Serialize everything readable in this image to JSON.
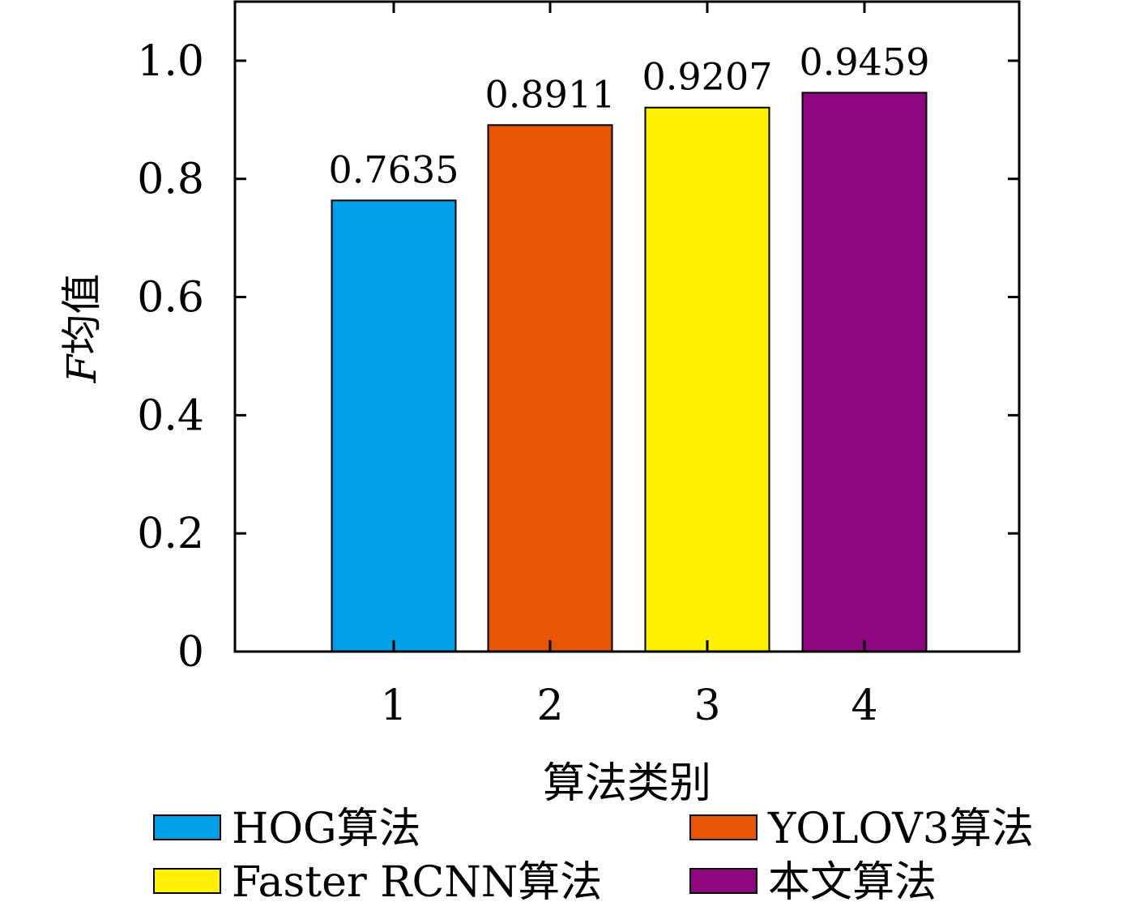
{
  "chart_data": {
    "type": "bar",
    "xlabel": "算法类别",
    "ylabel": "F均值",
    "ylabel_italic_prefix": "F",
    "ylabel_rest": "均值",
    "categories": [
      "1",
      "2",
      "3",
      "4"
    ],
    "values": [
      0.7635,
      0.8911,
      0.9207,
      0.9459
    ],
    "data_labels": [
      "0.7635",
      "0.8911",
      "0.9207",
      "0.9459"
    ],
    "ylim": [
      0,
      1.1
    ],
    "yticks": [
      0,
      0.2,
      0.4,
      0.6,
      0.8,
      1.0
    ],
    "ytick_labels": [
      "0",
      "0.2",
      "0.4",
      "0.6",
      "0.8",
      "1.0"
    ],
    "grid": false,
    "legend_position": "bottom",
    "series": [
      {
        "name": "HOG算法",
        "color": "#00A0E8"
      },
      {
        "name": "YOLOV3算法",
        "color": "#E85504"
      },
      {
        "name": "Faster RCNN算法",
        "color": "#FFF000"
      },
      {
        "name": "本文算法",
        "color": "#8E0680"
      }
    ]
  }
}
